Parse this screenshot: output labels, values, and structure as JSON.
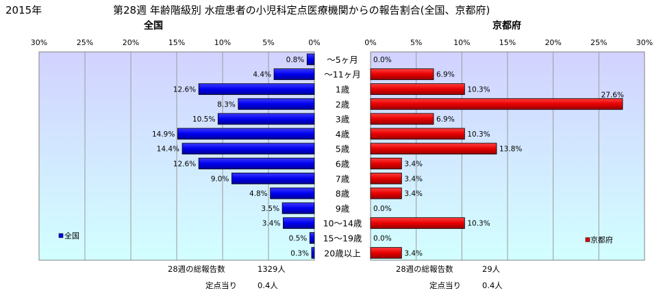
{
  "header": {
    "year": "2015年",
    "title": "第28週 年齢階級別 水痘患者の小児科定点医療機関からの報告割合(全国、京都府)"
  },
  "colors": {
    "national_bar": "#0000ee",
    "kyoto_bar": "#e60000",
    "plot_top": "#d2d2ff",
    "plot_bottom": "#d2ffff",
    "grid": "#999999"
  },
  "chart_data": [
    {
      "type": "bar",
      "orientation": "horizontal-reversed",
      "title": "全国",
      "legend": "全国",
      "legend_position": "bottom-left",
      "xlim": [
        0,
        30
      ],
      "ticks": [
        "30%",
        "25%",
        "20%",
        "15%",
        "10%",
        "5%",
        "0%"
      ],
      "tick_values": [
        30,
        25,
        20,
        15,
        10,
        5,
        0
      ],
      "grid": true,
      "categories": [
        "～5ヶ月",
        "～11ヶ月",
        "1歳",
        "2歳",
        "3歳",
        "4歳",
        "5歳",
        "6歳",
        "7歳",
        "8歳",
        "9歳",
        "10～14歳",
        "15～19歳",
        "20歳以上"
      ],
      "values": [
        0.8,
        4.4,
        12.6,
        8.3,
        10.5,
        14.9,
        14.4,
        12.6,
        9.0,
        4.8,
        3.5,
        3.4,
        0.5,
        0.3
      ],
      "labels": [
        "0.8%",
        "4.4%",
        "12.6%",
        "8.3%",
        "10.5%",
        "14.9%",
        "14.4%",
        "12.6%",
        "9.0%",
        "4.8%",
        "3.5%",
        "3.4%",
        "0.5%",
        "0.3%"
      ]
    },
    {
      "type": "bar",
      "orientation": "horizontal",
      "title": "京都府",
      "legend": "京都府",
      "legend_position": "bottom-right",
      "xlim": [
        0,
        30
      ],
      "ticks": [
        "0%",
        "5%",
        "10%",
        "15%",
        "20%",
        "25%",
        "30%"
      ],
      "tick_values": [
        0,
        5,
        10,
        15,
        20,
        25,
        30
      ],
      "grid": true,
      "categories": [
        "～5ヶ月",
        "～11ヶ月",
        "1歳",
        "2歳",
        "3歳",
        "4歳",
        "5歳",
        "6歳",
        "7歳",
        "8歳",
        "9歳",
        "10～14歳",
        "15～19歳",
        "20歳以上"
      ],
      "values": [
        0.0,
        6.9,
        10.3,
        27.6,
        6.9,
        10.3,
        13.8,
        3.4,
        3.4,
        3.4,
        0.0,
        10.3,
        0.0,
        3.4
      ],
      "labels": [
        "0.0%",
        "6.9%",
        "10.3%",
        "27.6%",
        "6.9%",
        "10.3%",
        "13.8%",
        "3.4%",
        "3.4%",
        "3.4%",
        "0.0%",
        "10.3%",
        "0.0%",
        "3.4%"
      ]
    }
  ],
  "footer": {
    "national": {
      "total_label": "28週の総報告数",
      "total_value": "1329人",
      "per_label": "定点当り",
      "per_value": "0.4人"
    },
    "kyoto": {
      "total_label": "28週の総報告数",
      "total_value": "29人",
      "per_label": "定点当り",
      "per_value": "0.4人"
    }
  }
}
